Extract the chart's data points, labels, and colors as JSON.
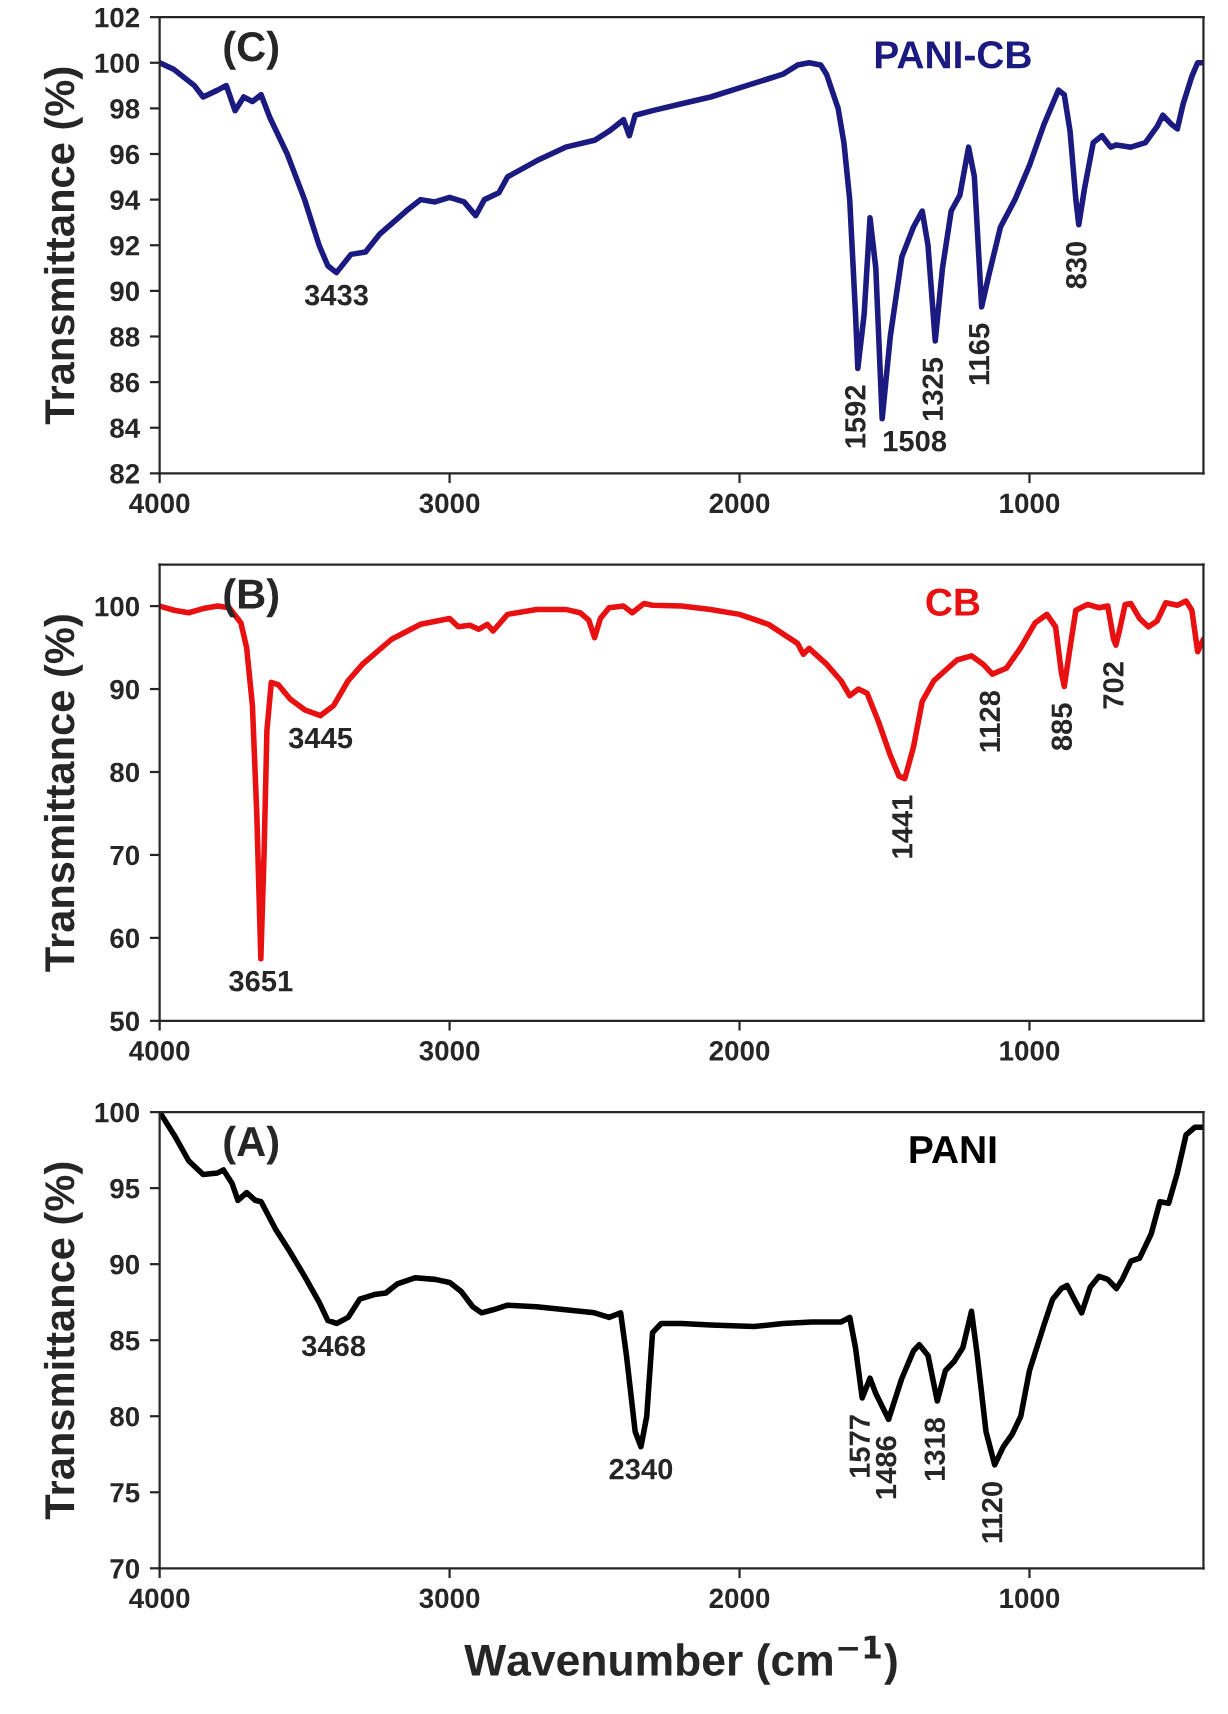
{
  "chart_data": [
    {
      "type": "line",
      "title": "(C)",
      "ylabel": "Transmittance (%)",
      "xlim": [
        4000,
        400
      ],
      "xticks": [
        4000,
        3000,
        2000,
        1000
      ],
      "ylim": [
        82,
        102
      ],
      "yticks": [
        82,
        84,
        86,
        88,
        90,
        92,
        94,
        96,
        98,
        100,
        102
      ],
      "grid": false,
      "x": [
        4000,
        3950,
        3880,
        3850,
        3800,
        3770,
        3740,
        3710,
        3680,
        3650,
        3620,
        3560,
        3500,
        3450,
        3420,
        3390,
        3340,
        3290,
        3240,
        3150,
        3100,
        3050,
        3000,
        2950,
        2910,
        2880,
        2830,
        2800,
        2700,
        2600,
        2500,
        2450,
        2400,
        2380,
        2360,
        2300,
        2200,
        2100,
        2000,
        1900,
        1850,
        1800,
        1760,
        1720,
        1700,
        1660,
        1640,
        1620,
        1600,
        1592,
        1570,
        1550,
        1530,
        1508,
        1480,
        1440,
        1400,
        1370,
        1350,
        1325,
        1300,
        1270,
        1240,
        1210,
        1190,
        1165,
        1140,
        1100,
        1050,
        1000,
        950,
        900,
        880,
        860,
        840,
        830,
        810,
        780,
        750,
        720,
        700,
        650,
        600,
        560,
        540,
        510,
        490,
        470,
        440,
        420,
        400
      ],
      "series": [
        {
          "name": "PANI-CB",
          "color": "#1a1a80",
          "values": [
            100.0,
            99.7,
            99.0,
            98.5,
            98.8,
            99.0,
            97.9,
            98.5,
            98.3,
            98.6,
            97.6,
            96.0,
            94.0,
            92.0,
            91.1,
            90.8,
            91.6,
            91.7,
            92.5,
            93.5,
            94.0,
            93.9,
            94.1,
            93.9,
            93.3,
            94.0,
            94.3,
            95.0,
            95.7,
            96.3,
            96.6,
            97.0,
            97.5,
            96.8,
            97.7,
            97.9,
            98.2,
            98.5,
            98.9,
            99.3,
            99.5,
            99.9,
            100.0,
            99.9,
            99.5,
            98.0,
            96.5,
            94.0,
            89.0,
            86.6,
            89.0,
            93.2,
            91.0,
            84.4,
            88.0,
            91.5,
            92.8,
            93.5,
            92.0,
            87.8,
            91.0,
            93.5,
            94.2,
            96.3,
            95.0,
            89.3,
            90.7,
            92.8,
            94.0,
            95.5,
            97.3,
            98.8,
            98.6,
            97.0,
            94.0,
            92.9,
            94.5,
            96.5,
            96.8,
            96.3,
            96.4,
            96.3,
            96.5,
            97.2,
            97.7,
            97.3,
            97.1,
            98.2,
            99.4,
            100.0,
            100.0
          ]
        }
      ],
      "annotations": [
        {
          "text": "3433",
          "x": 3390,
          "y": 90.8
        },
        {
          "text": "1592",
          "x": 1592,
          "y": 86.6
        },
        {
          "text": "1508",
          "x": 1508,
          "y": 84.4
        },
        {
          "text": "1325",
          "x": 1325,
          "y": 87.8
        },
        {
          "text": "1165",
          "x": 1165,
          "y": 89.3
        },
        {
          "text": "830",
          "x": 830,
          "y": 92.9
        }
      ]
    },
    {
      "type": "line",
      "title": "(B)",
      "ylabel": "Transmittance (%)",
      "xlim": [
        4000,
        400
      ],
      "xticks": [
        4000,
        3000,
        2000,
        1000
      ],
      "ylim": [
        50,
        105
      ],
      "yticks": [
        50,
        60,
        70,
        80,
        90,
        100
      ],
      "grid": false,
      "x": [
        4000,
        3950,
        3900,
        3850,
        3800,
        3760,
        3720,
        3700,
        3680,
        3665,
        3651,
        3640,
        3630,
        3615,
        3590,
        3550,
        3500,
        3445,
        3400,
        3350,
        3300,
        3200,
        3100,
        3000,
        2970,
        2930,
        2900,
        2870,
        2850,
        2800,
        2700,
        2600,
        2550,
        2520,
        2500,
        2480,
        2450,
        2400,
        2370,
        2330,
        2300,
        2200,
        2100,
        2000,
        1900,
        1800,
        1780,
        1760,
        1700,
        1650,
        1620,
        1590,
        1560,
        1520,
        1480,
        1450,
        1430,
        1400,
        1370,
        1330,
        1250,
        1200,
        1160,
        1128,
        1080,
        1030,
        980,
        940,
        910,
        890,
        880,
        860,
        840,
        800,
        760,
        730,
        710,
        702,
        690,
        670,
        650,
        620,
        590,
        560,
        530,
        490,
        460,
        440,
        420,
        400
      ],
      "series": [
        {
          "name": "CB",
          "color": "#e81010",
          "values": [
            100.0,
            99.5,
            99.2,
            99.7,
            100.0,
            99.8,
            98.0,
            95.0,
            88.0,
            75.0,
            57.5,
            70.0,
            85.0,
            90.8,
            90.5,
            88.8,
            87.5,
            86.8,
            88.0,
            91.0,
            93.0,
            96.0,
            97.8,
            98.5,
            97.5,
            97.7,
            97.2,
            97.8,
            97.0,
            99.0,
            99.6,
            99.6,
            99.2,
            98.3,
            96.2,
            98.5,
            99.8,
            100.0,
            99.2,
            100.3,
            100.1,
            100.0,
            99.6,
            99.0,
            97.8,
            95.5,
            94.2,
            94.9,
            93.0,
            91.0,
            89.2,
            90.0,
            89.5,
            86.0,
            82.0,
            79.5,
            79.2,
            83.0,
            88.5,
            91.0,
            93.5,
            94.0,
            93.0,
            91.8,
            92.5,
            95.0,
            98.0,
            99.0,
            97.5,
            92.0,
            90.3,
            95.0,
            99.5,
            100.2,
            99.8,
            100.0,
            96.0,
            95.3,
            97.0,
            100.2,
            100.3,
            98.5,
            97.5,
            98.2,
            100.4,
            100.1,
            100.6,
            99.5,
            94.5,
            96.0
          ]
        }
      ],
      "annotations": [
        {
          "text": "3651",
          "x": 3651,
          "y": 57.5
        },
        {
          "text": "3445",
          "x": 3445,
          "y": 86.8
        },
        {
          "text": "1441",
          "x": 1430,
          "y": 79.2
        },
        {
          "text": "1128",
          "x": 1128,
          "y": 91.8
        },
        {
          "text": "885",
          "x": 880,
          "y": 90.3
        },
        {
          "text": "702",
          "x": 702,
          "y": 95.3
        }
      ]
    },
    {
      "type": "line",
      "title": "(A)",
      "ylabel": "Transmittance (%)",
      "xlabel": "Wavenumber (cm$^{−1}$)",
      "xlim": [
        4000,
        400
      ],
      "xticks": [
        4000,
        3000,
        2000,
        1000
      ],
      "ylim": [
        70,
        100
      ],
      "yticks": [
        70,
        75,
        80,
        85,
        90,
        95,
        100
      ],
      "grid": false,
      "x": [
        4000,
        3950,
        3900,
        3850,
        3800,
        3780,
        3750,
        3730,
        3700,
        3670,
        3650,
        3600,
        3550,
        3500,
        3450,
        3420,
        3390,
        3350,
        3310,
        3260,
        3220,
        3180,
        3120,
        3050,
        3000,
        2960,
        2920,
        2890,
        2850,
        2800,
        2700,
        2600,
        2500,
        2450,
        2410,
        2390,
        2360,
        2340,
        2320,
        2300,
        2270,
        2200,
        2100,
        1950,
        1850,
        1750,
        1650,
        1620,
        1600,
        1577,
        1550,
        1530,
        1486,
        1440,
        1400,
        1380,
        1350,
        1318,
        1290,
        1260,
        1230,
        1200,
        1180,
        1150,
        1120,
        1090,
        1060,
        1030,
        1000,
        950,
        920,
        890,
        870,
        840,
        820,
        790,
        760,
        730,
        700,
        680,
        650,
        620,
        580,
        550,
        520,
        490,
        460,
        430,
        400
      ],
      "series": [
        {
          "name": "PANI",
          "color": "#000000",
          "values": [
            100.0,
            98.5,
            96.8,
            95.9,
            96.0,
            96.2,
            95.3,
            94.2,
            94.7,
            94.2,
            94.1,
            92.3,
            90.8,
            89.2,
            87.5,
            86.3,
            86.1,
            86.5,
            87.7,
            88.0,
            88.1,
            88.7,
            89.1,
            89.0,
            88.8,
            88.2,
            87.2,
            86.8,
            87.0,
            87.3,
            87.2,
            87.0,
            86.8,
            86.5,
            86.8,
            84.0,
            79.0,
            78.0,
            80.0,
            85.5,
            86.1,
            86.1,
            86.0,
            85.9,
            86.1,
            86.2,
            86.2,
            86.5,
            84.5,
            81.2,
            82.5,
            81.5,
            79.8,
            82.5,
            84.3,
            84.7,
            84.0,
            81.0,
            83.0,
            83.6,
            84.5,
            86.9,
            84.0,
            79.0,
            76.8,
            78.0,
            78.8,
            80.0,
            83.0,
            86.0,
            87.7,
            88.4,
            88.6,
            87.5,
            86.8,
            88.5,
            89.2,
            89.0,
            88.4,
            89.0,
            90.2,
            90.4,
            92.0,
            94.1,
            94.0,
            96.0,
            98.5,
            99.0,
            99.0
          ]
        }
      ],
      "annotations": [
        {
          "text": "3468",
          "x": 3400,
          "y": 86.1
        },
        {
          "text": "2340",
          "x": 2340,
          "y": 78.0
        },
        {
          "text": "1577",
          "x": 1577,
          "y": 81.2
        },
        {
          "text": "1486",
          "x": 1486,
          "y": 79.8
        },
        {
          "text": "1318",
          "x": 1318,
          "y": 81.0
        },
        {
          "text": "1120",
          "x": 1120,
          "y": 76.8
        }
      ]
    }
  ]
}
